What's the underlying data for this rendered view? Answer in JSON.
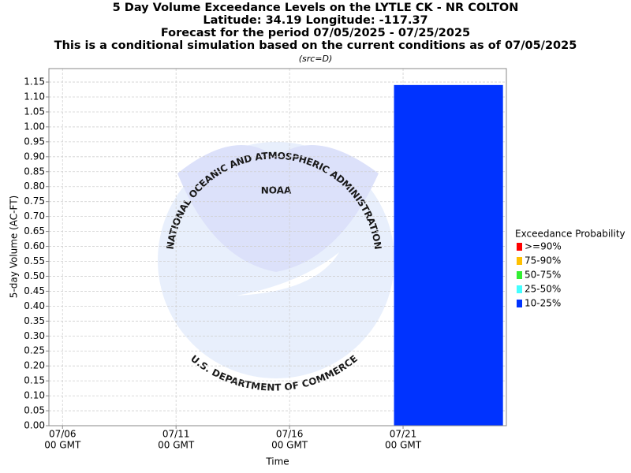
{
  "chart_data": {
    "type": "bar",
    "title": "5 Day Volume Exceedance Levels on the LYTLE CK - NR COLTON",
    "subtitle_lines": [
      "Latitude: 34.19 Longitude: -117.37",
      "Forecast for the period 07/05/2025 - 07/25/2025",
      "This is a conditional simulation based on the current conditions as of 07/05/2025"
    ],
    "source": "(src=D)",
    "y_label": "5-day Volume (AC-FT)",
    "x_label": "Time",
    "legend_title": "Exceedance Probability",
    "legend": "right",
    "grid": true,
    "watermark": {
      "logo": "NOAA",
      "top": "NATIONAL OCEANIC AND ATMOSPHERIC ADMINISTRATION",
      "bottom": "U.S. DEPARTMENT OF COMMERCE"
    },
    "bar_x": [
      14.6,
      19.4
    ],
    "series": [
      {
        "name": ">=90%",
        "color": "#ff0000",
        "values": [
          null
        ]
      },
      {
        "name": "75-90%",
        "color": "#ffc000",
        "values": [
          null
        ]
      },
      {
        "name": "50-75%",
        "color": "#33ee33",
        "values": [
          null
        ]
      },
      {
        "name": "25-50%",
        "color": "#44ffff",
        "values": [
          null
        ]
      },
      {
        "name": "10-25%",
        "color": "#0033ff",
        "values": [
          1.14
        ]
      }
    ],
    "xlim": [
      -0.6,
      19.55
    ],
    "xticks": [
      {
        "value": 0,
        "label": [
          "07/06",
          "00 GMT"
        ]
      },
      {
        "value": 5,
        "label": [
          "07/11",
          "00 GMT"
        ]
      },
      {
        "value": 10,
        "label": [
          "07/16",
          "00 GMT"
        ]
      },
      {
        "value": 15,
        "label": [
          "07/21",
          "00 GMT"
        ]
      }
    ],
    "ylim": [
      0,
      1.195
    ],
    "yticks": [
      {
        "value": 0,
        "label": "0.00"
      },
      {
        "value": 0.05,
        "label": "0.05"
      },
      {
        "value": 0.1,
        "label": "0.10"
      },
      {
        "value": 0.15,
        "label": "0.15"
      },
      {
        "value": 0.2,
        "label": "0.20"
      },
      {
        "value": 0.25,
        "label": "0.25"
      },
      {
        "value": 0.3,
        "label": "0.30"
      },
      {
        "value": 0.35,
        "label": "0.35"
      },
      {
        "value": 0.4,
        "label": "0.40"
      },
      {
        "value": 0.45,
        "label": "0.45"
      },
      {
        "value": 0.5,
        "label": "0.50"
      },
      {
        "value": 0.55,
        "label": "0.55"
      },
      {
        "value": 0.6,
        "label": "0.60"
      },
      {
        "value": 0.65,
        "label": "0.65"
      },
      {
        "value": 0.7,
        "label": "0.70"
      },
      {
        "value": 0.75,
        "label": "0.75"
      },
      {
        "value": 0.8,
        "label": "0.80"
      },
      {
        "value": 0.85,
        "label": "0.85"
      },
      {
        "value": 0.9,
        "label": "0.90"
      },
      {
        "value": 0.95,
        "label": "0.95"
      },
      {
        "value": 1.0,
        "label": "1.00"
      },
      {
        "value": 1.05,
        "label": "1.05"
      },
      {
        "value": 1.1,
        "label": "1.10"
      },
      {
        "value": 1.15,
        "label": "1.15"
      }
    ]
  }
}
